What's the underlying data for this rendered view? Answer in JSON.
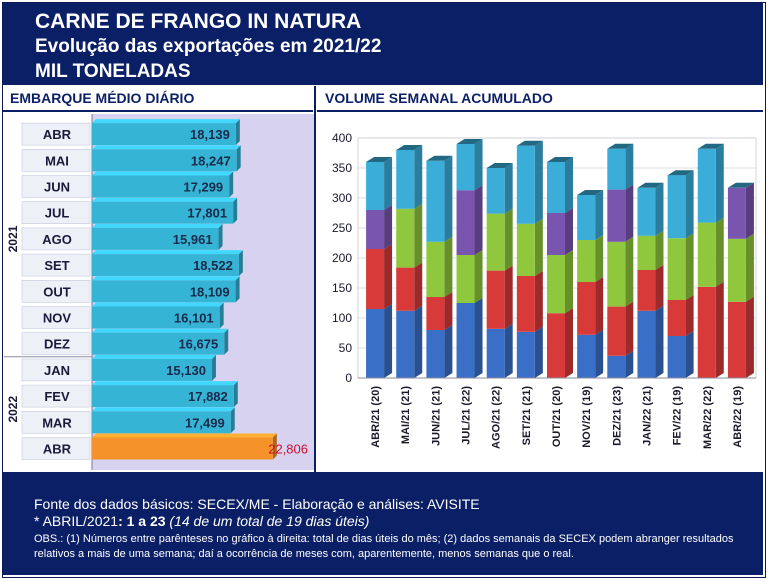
{
  "header": {
    "line1": "CARNE DE FRANGO IN NATURA",
    "line2": "Evolução das exportações em 2021/22",
    "line3": "MIL TONELADAS"
  },
  "left_title": "EMBARQUE MÉDIO DIÁRIO",
  "right_title": "VOLUME SEMANAL ACUMULADO",
  "footer": {
    "source": "Fonte dos dados básicos: SECEX/ME - Elaboração e análises: AVISITE",
    "note_prefix": "*  ABRIL/2021",
    "note_days": ": 1 a 23",
    "note_detail": " (14 de um total de 19 dias úteis)",
    "obs": "OBS.: (1) Números entre parênteses no gráfico à direita: total de dias úteis do mês; (2) dados semanais da SECEX podem abranger resultados relativos a mais de uma semana; daí a ocorrência de meses com, aparentemente, menos semanas que o real."
  },
  "colors": {
    "header_bg": "#0b1f66",
    "left_bar": "#36b4d6",
    "left_highlight": "#f6922a",
    "left_plot_bg": "#d6d2f0",
    "stack_colors": [
      "#3a6fc8",
      "#d83a3a",
      "#8fc83c",
      "#7a55b0",
      "#3aaed8"
    ]
  },
  "chart_data": [
    {
      "type": "bar",
      "orientation": "horizontal",
      "title": "EMBARQUE MÉDIO DIÁRIO",
      "categories": [
        "ABR",
        "MAI",
        "JUN",
        "JUL",
        "AGO",
        "SET",
        "OUT",
        "NOV",
        "DEZ",
        "JAN",
        "FEV",
        "MAR",
        "ABR"
      ],
      "values": [
        18139,
        18247,
        17299,
        17801,
        15961,
        18522,
        18109,
        16101,
        16675,
        15130,
        17882,
        17499,
        22806
      ],
      "labels": [
        "18,139",
        "18,247",
        "17,299",
        "17,801",
        "15,961",
        "18,522",
        "18,109",
        "16,101",
        "16,675",
        "15,130",
        "17,882",
        "17,499",
        "22,806"
      ],
      "groups": [
        {
          "label": "2021",
          "from": 0,
          "to": 8
        },
        {
          "label": "2022",
          "from": 9,
          "to": 12
        }
      ],
      "highlight_index": 12,
      "xlim": [
        0,
        28000
      ]
    },
    {
      "type": "bar",
      "stacked": true,
      "title": "VOLUME SEMANAL ACUMULADO",
      "categories": [
        "ABR/21 (20)",
        "MAI/21 (21)",
        "JUN/21 (21)",
        "JUL/21 (22)",
        "AGO/21 (22)",
        "SET/21 (21)",
        "OUT/21 (20)",
        "NOV/21 (19)",
        "DEZ/21 (23)",
        "JAN/22 (21)",
        "FEV/22 (19)",
        "MAR/22 (22)",
        "ABR/22 (19)"
      ],
      "segments": [
        [
          115,
          100,
          0,
          65,
          80
        ],
        [
          112,
          72,
          98,
          0,
          98
        ],
        [
          80,
          55,
          92,
          0,
          135
        ],
        [
          125,
          0,
          80,
          108,
          77
        ],
        [
          82,
          97,
          95,
          0,
          76
        ],
        [
          77,
          93,
          87,
          0,
          130
        ],
        [
          0,
          108,
          97,
          70,
          85
        ],
        [
          72,
          88,
          70,
          0,
          75
        ],
        [
          37,
          82,
          108,
          87,
          68
        ],
        [
          112,
          68,
          57,
          0,
          80
        ],
        [
          70,
          60,
          103,
          0,
          105
        ],
        [
          0,
          152,
          107,
          0,
          123
        ],
        [
          0,
          127,
          105,
          85,
          0
        ]
      ],
      "ylim": [
        0,
        400
      ],
      "yticks": [
        0,
        50,
        100,
        150,
        200,
        250,
        300,
        350,
        400
      ],
      "grid": true
    }
  ]
}
